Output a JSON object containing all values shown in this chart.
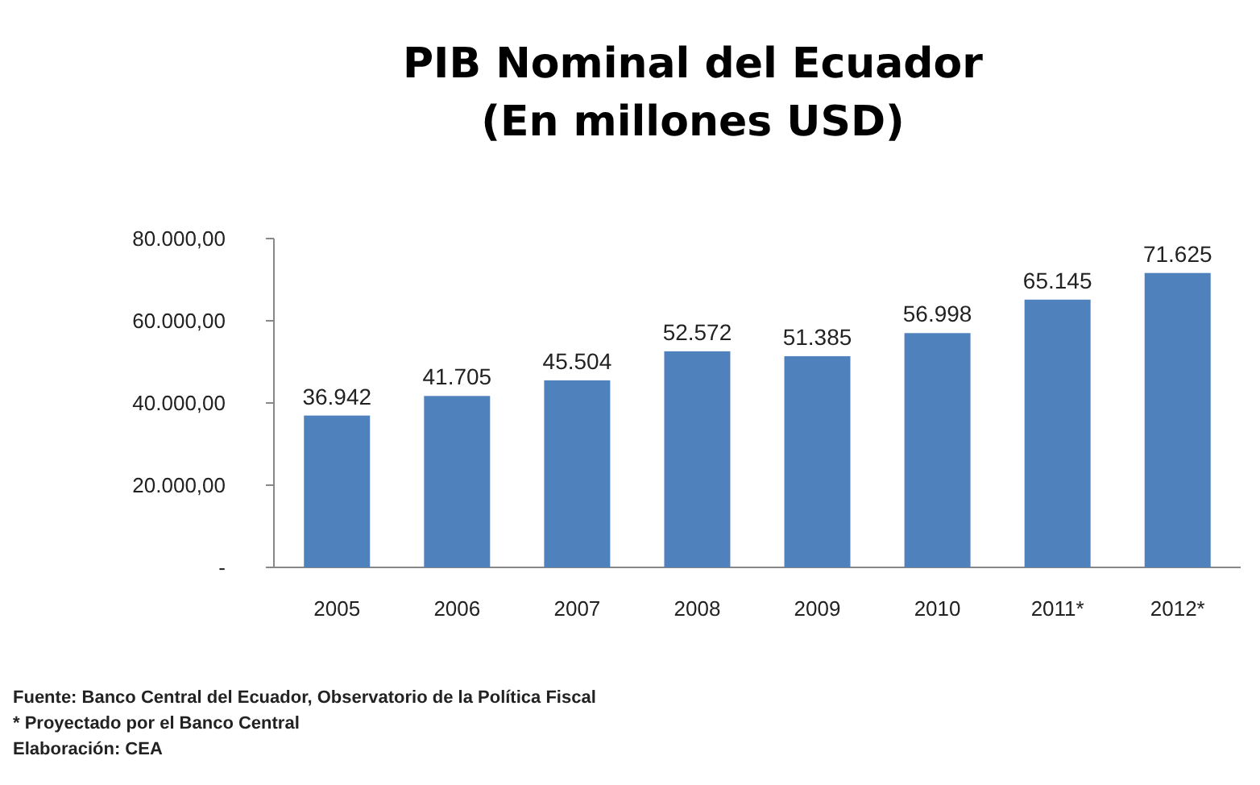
{
  "chart_data": {
    "type": "bar",
    "title": "PIB Nominal del Ecuador",
    "subtitle": "(En millones USD)",
    "categories": [
      "2005",
      "2006",
      "2007",
      "2008",
      "2009",
      "2010",
      "2011*",
      "2012*"
    ],
    "values": [
      36942,
      41705,
      45504,
      52572,
      51385,
      56998,
      65145,
      71625
    ],
    "value_labels": [
      "36.942",
      "41.705",
      "45.504",
      "52.572",
      "51.385",
      "56.998",
      "65.145",
      "71.625"
    ],
    "color": "#4f81bd",
    "ylim": [
      0,
      80000
    ],
    "yticks": [
      {
        "value": 0,
        "label": "-"
      },
      {
        "value": 20000,
        "label": "20.000,00"
      },
      {
        "value": 40000,
        "label": "40.000,00"
      },
      {
        "value": 60000,
        "label": "60.000,00"
      },
      {
        "value": 80000,
        "label": "80.000,00"
      }
    ],
    "grid": false,
    "annotations": [
      "Fuente: Banco Central del Ecuador, Observatorio de la Política Fiscal",
      "* Proyectado por el Banco Central",
      "Elaboración: CEA"
    ]
  }
}
